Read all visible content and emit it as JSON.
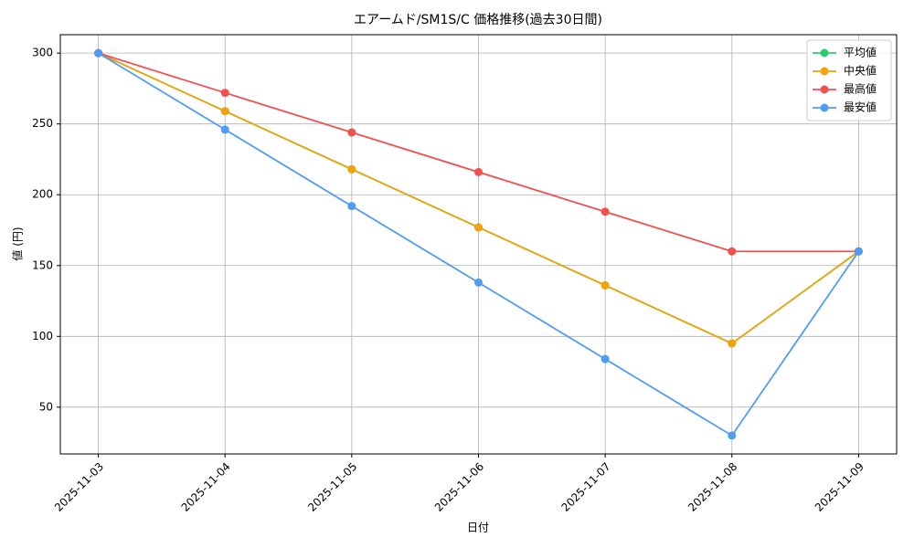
{
  "chart_data": {
    "type": "line",
    "title": "エアームド/SM1S/C 価格推移(過去30日間)",
    "x_label": "日付",
    "y_label": "値 (円)",
    "categories": [
      "2025-11-03",
      "2025-11-04",
      "2025-11-05",
      "2025-11-06",
      "2025-11-07",
      "2025-11-08",
      "2025-11-09"
    ],
    "series": [
      {
        "name": "平均値",
        "color": "#2ecc71",
        "values": [
          300,
          259,
          218,
          177,
          136,
          95,
          160
        ]
      },
      {
        "name": "中央値",
        "color": "#f0a30a",
        "values": [
          300,
          259,
          218,
          177,
          136,
          95,
          160
        ]
      },
      {
        "name": "最高値",
        "color": "#f44f4f",
        "values": [
          300,
          272,
          244,
          216,
          188,
          160,
          160
        ]
      },
      {
        "name": "最安値",
        "color": "#4f9cf4",
        "values": [
          300,
          246,
          192,
          138,
          84,
          30,
          160
        ]
      }
    ],
    "ylim": [
      17,
      313
    ],
    "yticks": [
      50,
      100,
      150,
      200,
      250,
      300
    ],
    "grid": true,
    "legend": "upper-right"
  }
}
